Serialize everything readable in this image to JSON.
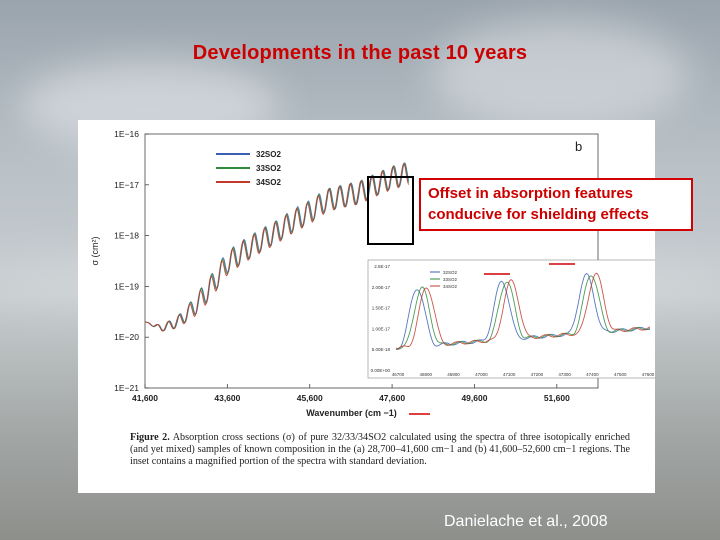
{
  "slide": {
    "title": "Developments in the past 10 years",
    "credit": "Danielache et al., 2008"
  },
  "callout": {
    "line1": "Offset in absorption features",
    "line2": "conducive for shielding effects"
  },
  "figure": {
    "panel_label": "b",
    "caption_label": "Figure 2.",
    "caption_text": "Absorption cross sections (σ) of pure 32/33/34SO2 calculated using the spectra of three isotopically enriched (and yet mixed) samples of known composition in the (a) 28,700–41,600 cm−1 and (b) 41,600–52,600 cm−1 regions. The inset contains a magnified portion of the spectra with standard deviation.",
    "inset_legend": [
      "32SO2",
      "33SO2",
      "34SO2"
    ],
    "inset_y_ticks": [
      "2.5E-17",
      "2.00E-17",
      "1.50E-17",
      "1.00E-17",
      "5.00E-18",
      "0.00E+00"
    ],
    "inset_x_ticks": [
      "46700",
      "46800",
      "46900",
      "47000",
      "47100",
      "47200",
      "47300",
      "47400",
      "47500",
      "47600"
    ]
  },
  "colors": {
    "series_32": "#3a5fb5",
    "series_33": "#2e8b3a",
    "series_34": "#c0392b",
    "accent": "#cc0000"
  },
  "chart_data": {
    "type": "line",
    "title": "",
    "xlabel": "Wavenumber (cm −1)",
    "ylabel": "σ (cm²)",
    "yscale": "log",
    "xlim": [
      41600,
      52600
    ],
    "ylim": [
      1e-21,
      1e-16
    ],
    "x_ticks": [
      41600,
      43600,
      45600,
      47600,
      49600,
      51600
    ],
    "x_tick_labels": [
      "41,600",
      "43,600",
      "45,600",
      "47,600",
      "49,600",
      "51,600"
    ],
    "y_tick_labels": [
      "1E−16",
      "1E−17",
      "1E−18",
      "1E−19",
      "1E−20",
      "1E−21"
    ],
    "legend_position": "top-left",
    "series": [
      {
        "name": "32SO2",
        "x": [
          41600,
          42000,
          42400,
          42800,
          43200,
          43600,
          44000,
          44400,
          44800,
          45200,
          45600,
          46000,
          46400,
          46800,
          47200,
          47600,
          48000
        ],
        "values": [
          2e-20,
          1.5e-20,
          2e-20,
          4e-20,
          1e-19,
          3e-19,
          5e-19,
          8e-19,
          1.2e-18,
          2e-18,
          3e-18,
          5e-18,
          6e-18,
          7e-18,
          1e-17,
          1.4e-17,
          1.7e-17
        ]
      },
      {
        "name": "33SO2",
        "x": [
          41600,
          42000,
          42400,
          42800,
          43200,
          43600,
          44000,
          44400,
          44800,
          45200,
          45600,
          46000,
          46400,
          46800,
          47200,
          47600,
          48000
        ],
        "values": [
          2e-20,
          1.5e-20,
          2e-20,
          4e-20,
          1e-19,
          2.9e-19,
          5e-19,
          7.8e-19,
          1.2e-18,
          1.9e-18,
          2.9e-18,
          4.9e-18,
          6e-18,
          7e-18,
          1e-17,
          1.4e-17,
          1.7e-17
        ]
      },
      {
        "name": "34SO2",
        "x": [
          41600,
          42000,
          42400,
          42800,
          43200,
          43600,
          44000,
          44400,
          44800,
          45200,
          45600,
          46000,
          46400,
          46800,
          47200,
          47600,
          48000
        ],
        "values": [
          2e-20,
          1.5e-20,
          2e-20,
          3.8e-20,
          9.5e-20,
          2.8e-19,
          4.8e-19,
          7.6e-19,
          1.15e-18,
          1.9e-18,
          2.8e-18,
          4.8e-18,
          5.9e-18,
          6.9e-18,
          9.8e-18,
          1.35e-17,
          1.65e-17
        ]
      }
    ]
  }
}
